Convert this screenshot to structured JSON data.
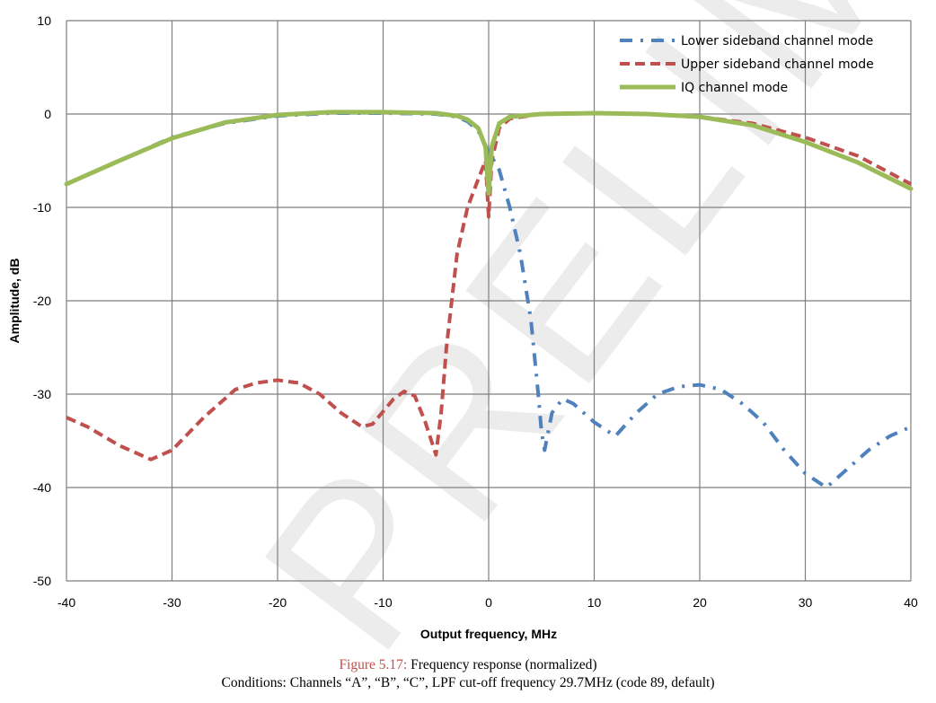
{
  "chart_data": {
    "type": "line",
    "xlabel": "Output frequency, MHz",
    "ylabel": "Amplitude, dB",
    "xlim": [
      -40,
      40
    ],
    "ylim": [
      -50,
      10
    ],
    "xticks": [
      -40,
      -30,
      -20,
      -10,
      0,
      10,
      20,
      30,
      40
    ],
    "yticks": [
      10,
      0,
      -10,
      -20,
      -30,
      -40,
      -50
    ],
    "grid": true,
    "legend_position": "top-right",
    "watermark": "PRELIMINARY",
    "series": [
      {
        "name": "Lower sideband channel mode",
        "color": "#4f81bd",
        "style": "dash-dot",
        "points": [
          [
            -40,
            -7.5
          ],
          [
            -35,
            -5
          ],
          [
            -30,
            -2.5
          ],
          [
            -25,
            -1
          ],
          [
            -20,
            -0.2
          ],
          [
            -15,
            0.1
          ],
          [
            -10,
            0.1
          ],
          [
            -5,
            0
          ],
          [
            -3,
            -0.3
          ],
          [
            -2,
            -0.8
          ],
          [
            -1,
            -1.8
          ],
          [
            0,
            -4
          ],
          [
            0.5,
            -5
          ],
          [
            1,
            -6
          ],
          [
            2,
            -10
          ],
          [
            3,
            -15
          ],
          [
            4,
            -22
          ],
          [
            4.7,
            -30
          ],
          [
            5,
            -34
          ],
          [
            5.3,
            -36
          ],
          [
            6,
            -32
          ],
          [
            7,
            -30.5
          ],
          [
            8,
            -31
          ],
          [
            10,
            -33
          ],
          [
            12,
            -34.5
          ],
          [
            14,
            -32
          ],
          [
            16,
            -30
          ],
          [
            18,
            -29.2
          ],
          [
            20,
            -29
          ],
          [
            22,
            -29.5
          ],
          [
            24,
            -31
          ],
          [
            26,
            -33
          ],
          [
            28,
            -36
          ],
          [
            30,
            -38.5
          ],
          [
            32,
            -40
          ],
          [
            34,
            -38
          ],
          [
            36,
            -36
          ],
          [
            38,
            -34.5
          ],
          [
            40,
            -33.5
          ]
        ]
      },
      {
        "name": "Upper sideband channel mode",
        "color": "#c0504d",
        "style": "dashed",
        "points": [
          [
            -40,
            -32.5
          ],
          [
            -38,
            -33.5
          ],
          [
            -35,
            -35.5
          ],
          [
            -32,
            -37
          ],
          [
            -30,
            -36
          ],
          [
            -27,
            -32.5
          ],
          [
            -24,
            -29.5
          ],
          [
            -22,
            -28.8
          ],
          [
            -20,
            -28.5
          ],
          [
            -18,
            -28.8
          ],
          [
            -16,
            -30
          ],
          [
            -14,
            -32
          ],
          [
            -12,
            -33.5
          ],
          [
            -11,
            -33.2
          ],
          [
            -9,
            -30.5
          ],
          [
            -8,
            -29.7
          ],
          [
            -7,
            -30.2
          ],
          [
            -6,
            -33
          ],
          [
            -5,
            -36.5
          ],
          [
            -4.5,
            -32
          ],
          [
            -4,
            -25
          ],
          [
            -3,
            -15
          ],
          [
            -2,
            -10
          ],
          [
            -1,
            -7
          ],
          [
            -0.3,
            -5
          ],
          [
            0,
            -11
          ],
          [
            0.3,
            -5
          ],
          [
            1,
            -1.5
          ],
          [
            2,
            -0.5
          ],
          [
            5,
            0
          ],
          [
            10,
            0.1
          ],
          [
            15,
            0
          ],
          [
            20,
            -0.3
          ],
          [
            25,
            -1
          ],
          [
            30,
            -2.5
          ],
          [
            35,
            -4.5
          ],
          [
            40,
            -7.5
          ]
        ]
      },
      {
        "name": "IQ channel mode",
        "color": "#9bbb59",
        "style": "solid",
        "points": [
          [
            -40,
            -7.5
          ],
          [
            -35,
            -5
          ],
          [
            -30,
            -2.6
          ],
          [
            -25,
            -0.9
          ],
          [
            -20,
            -0.1
          ],
          [
            -15,
            0.2
          ],
          [
            -10,
            0.2
          ],
          [
            -5,
            0.1
          ],
          [
            -3,
            -0.2
          ],
          [
            -2,
            -0.6
          ],
          [
            -1,
            -1.5
          ],
          [
            -0.3,
            -3.5
          ],
          [
            0,
            -8.5
          ],
          [
            0.3,
            -3.5
          ],
          [
            1,
            -1
          ],
          [
            2,
            -0.3
          ],
          [
            5,
            0
          ],
          [
            10,
            0.1
          ],
          [
            15,
            0
          ],
          [
            20,
            -0.3
          ],
          [
            25,
            -1.2
          ],
          [
            30,
            -3
          ],
          [
            35,
            -5.2
          ],
          [
            40,
            -8
          ]
        ]
      }
    ]
  },
  "caption": {
    "figure_label": "Figure 5.17:",
    "figure_text": "Frequency response (normalized)",
    "conditions": "Conditions: Channels “A”, “B”, “C”, LPF cut-off frequency 29.7MHz (code 89, default)"
  }
}
